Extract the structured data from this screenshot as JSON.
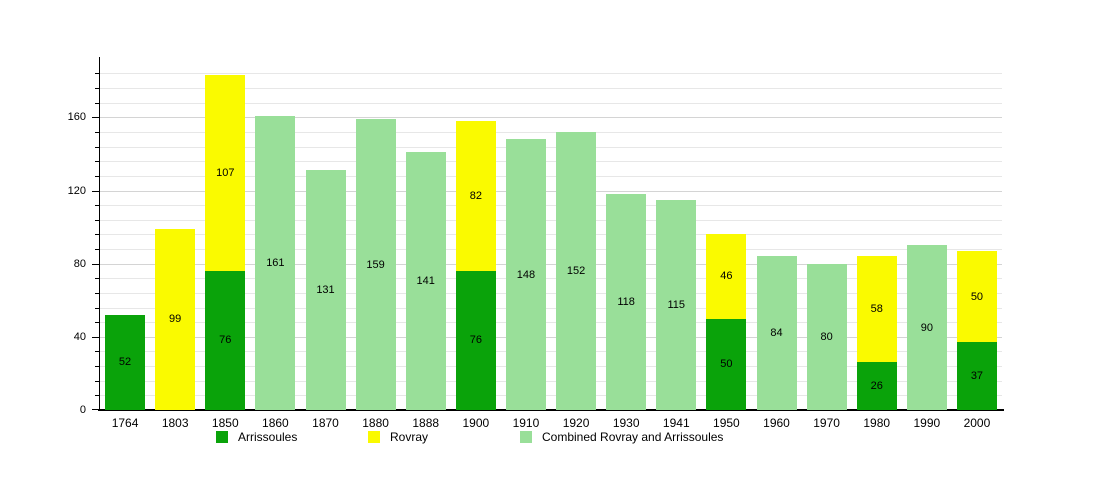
{
  "chart_data": {
    "type": "bar",
    "stacked": true,
    "title": "",
    "xlabel": "",
    "ylabel": "",
    "categories": [
      "1764",
      "1803",
      "1850",
      "1860",
      "1870",
      "1880",
      "1888",
      "1900",
      "1910",
      "1920",
      "1930",
      "1941",
      "1950",
      "1960",
      "1970",
      "1980",
      "1990",
      "2000"
    ],
    "series": [
      {
        "name": "Arrissoules",
        "color": "#0aa30a",
        "values": [
          52,
          null,
          76,
          null,
          null,
          null,
          null,
          76,
          null,
          null,
          null,
          null,
          50,
          null,
          null,
          26,
          null,
          37
        ]
      },
      {
        "name": "Rovray",
        "color": "#fafa00",
        "values": [
          null,
          99,
          107,
          null,
          null,
          null,
          null,
          82,
          null,
          null,
          null,
          null,
          46,
          null,
          null,
          58,
          null,
          50
        ]
      },
      {
        "name": "Combined Rovray and Arrissoules",
        "color": "#99df99",
        "values": [
          null,
          null,
          null,
          161,
          131,
          159,
          141,
          null,
          148,
          152,
          118,
          115,
          null,
          84,
          80,
          null,
          90,
          null
        ]
      }
    ],
    "bar_totals": [
      52,
      99,
      183,
      161,
      131,
      159,
      141,
      158,
      148,
      152,
      118,
      115,
      96,
      84,
      80,
      84,
      90,
      87
    ],
    "ylim": [
      0,
      193
    ],
    "yticks": [
      0,
      40,
      80,
      120,
      160
    ],
    "minor_grid_step": 8,
    "minor_grid_max": 184,
    "grid": true,
    "legend_position": "bottom",
    "colors": {
      "axis": "#000000",
      "minor_gridline": "#e7e7e7",
      "major_gridline": "#d4d4d4",
      "text": "#000000",
      "background": "#ffffff"
    }
  },
  "legend": {
    "items": [
      {
        "label": "Arrissoules"
      },
      {
        "label": "Rovray"
      },
      {
        "label": "Combined Rovray and Arrissoules"
      }
    ]
  }
}
